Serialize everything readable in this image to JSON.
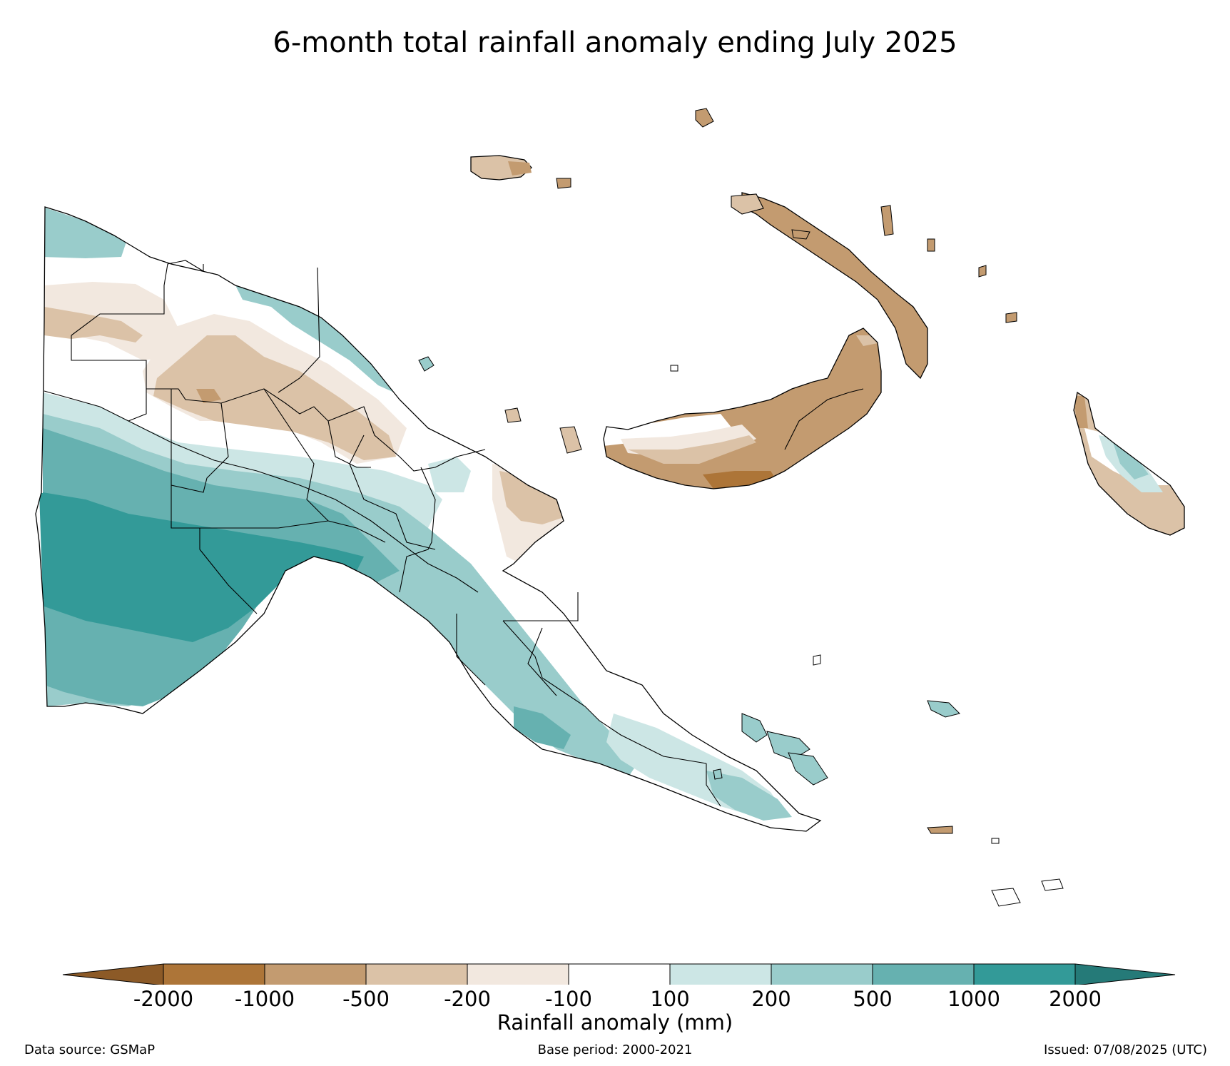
{
  "title": "6-month total rainfall anomaly ending July 2025",
  "legend": {
    "label": "Rainfall anomaly (mm)",
    "ticks": [
      "-2000",
      "-1000",
      "-500",
      "-200",
      "-100",
      "100",
      "200",
      "500",
      "1000",
      "2000"
    ],
    "colors": {
      "below_-2000": "#8c5a27",
      "-2000_-1000": "#ad7538",
      "-1000_-500": "#c39b70",
      "-500_-200": "#dbc2a7",
      "-200_-100": "#f2e8df",
      "-100_100": "#ffffff",
      "100_200": "#cce6e5",
      "200_500": "#99cccb",
      "500_1000": "#66b1b0",
      "1000_2000": "#339a98",
      "above_2000": "#257a78"
    }
  },
  "footer": {
    "source": "Data source: GSMaP",
    "base_period": "Base period: 2000-2021",
    "issued": "Issued: 07/08/2025 (UTC)"
  }
}
